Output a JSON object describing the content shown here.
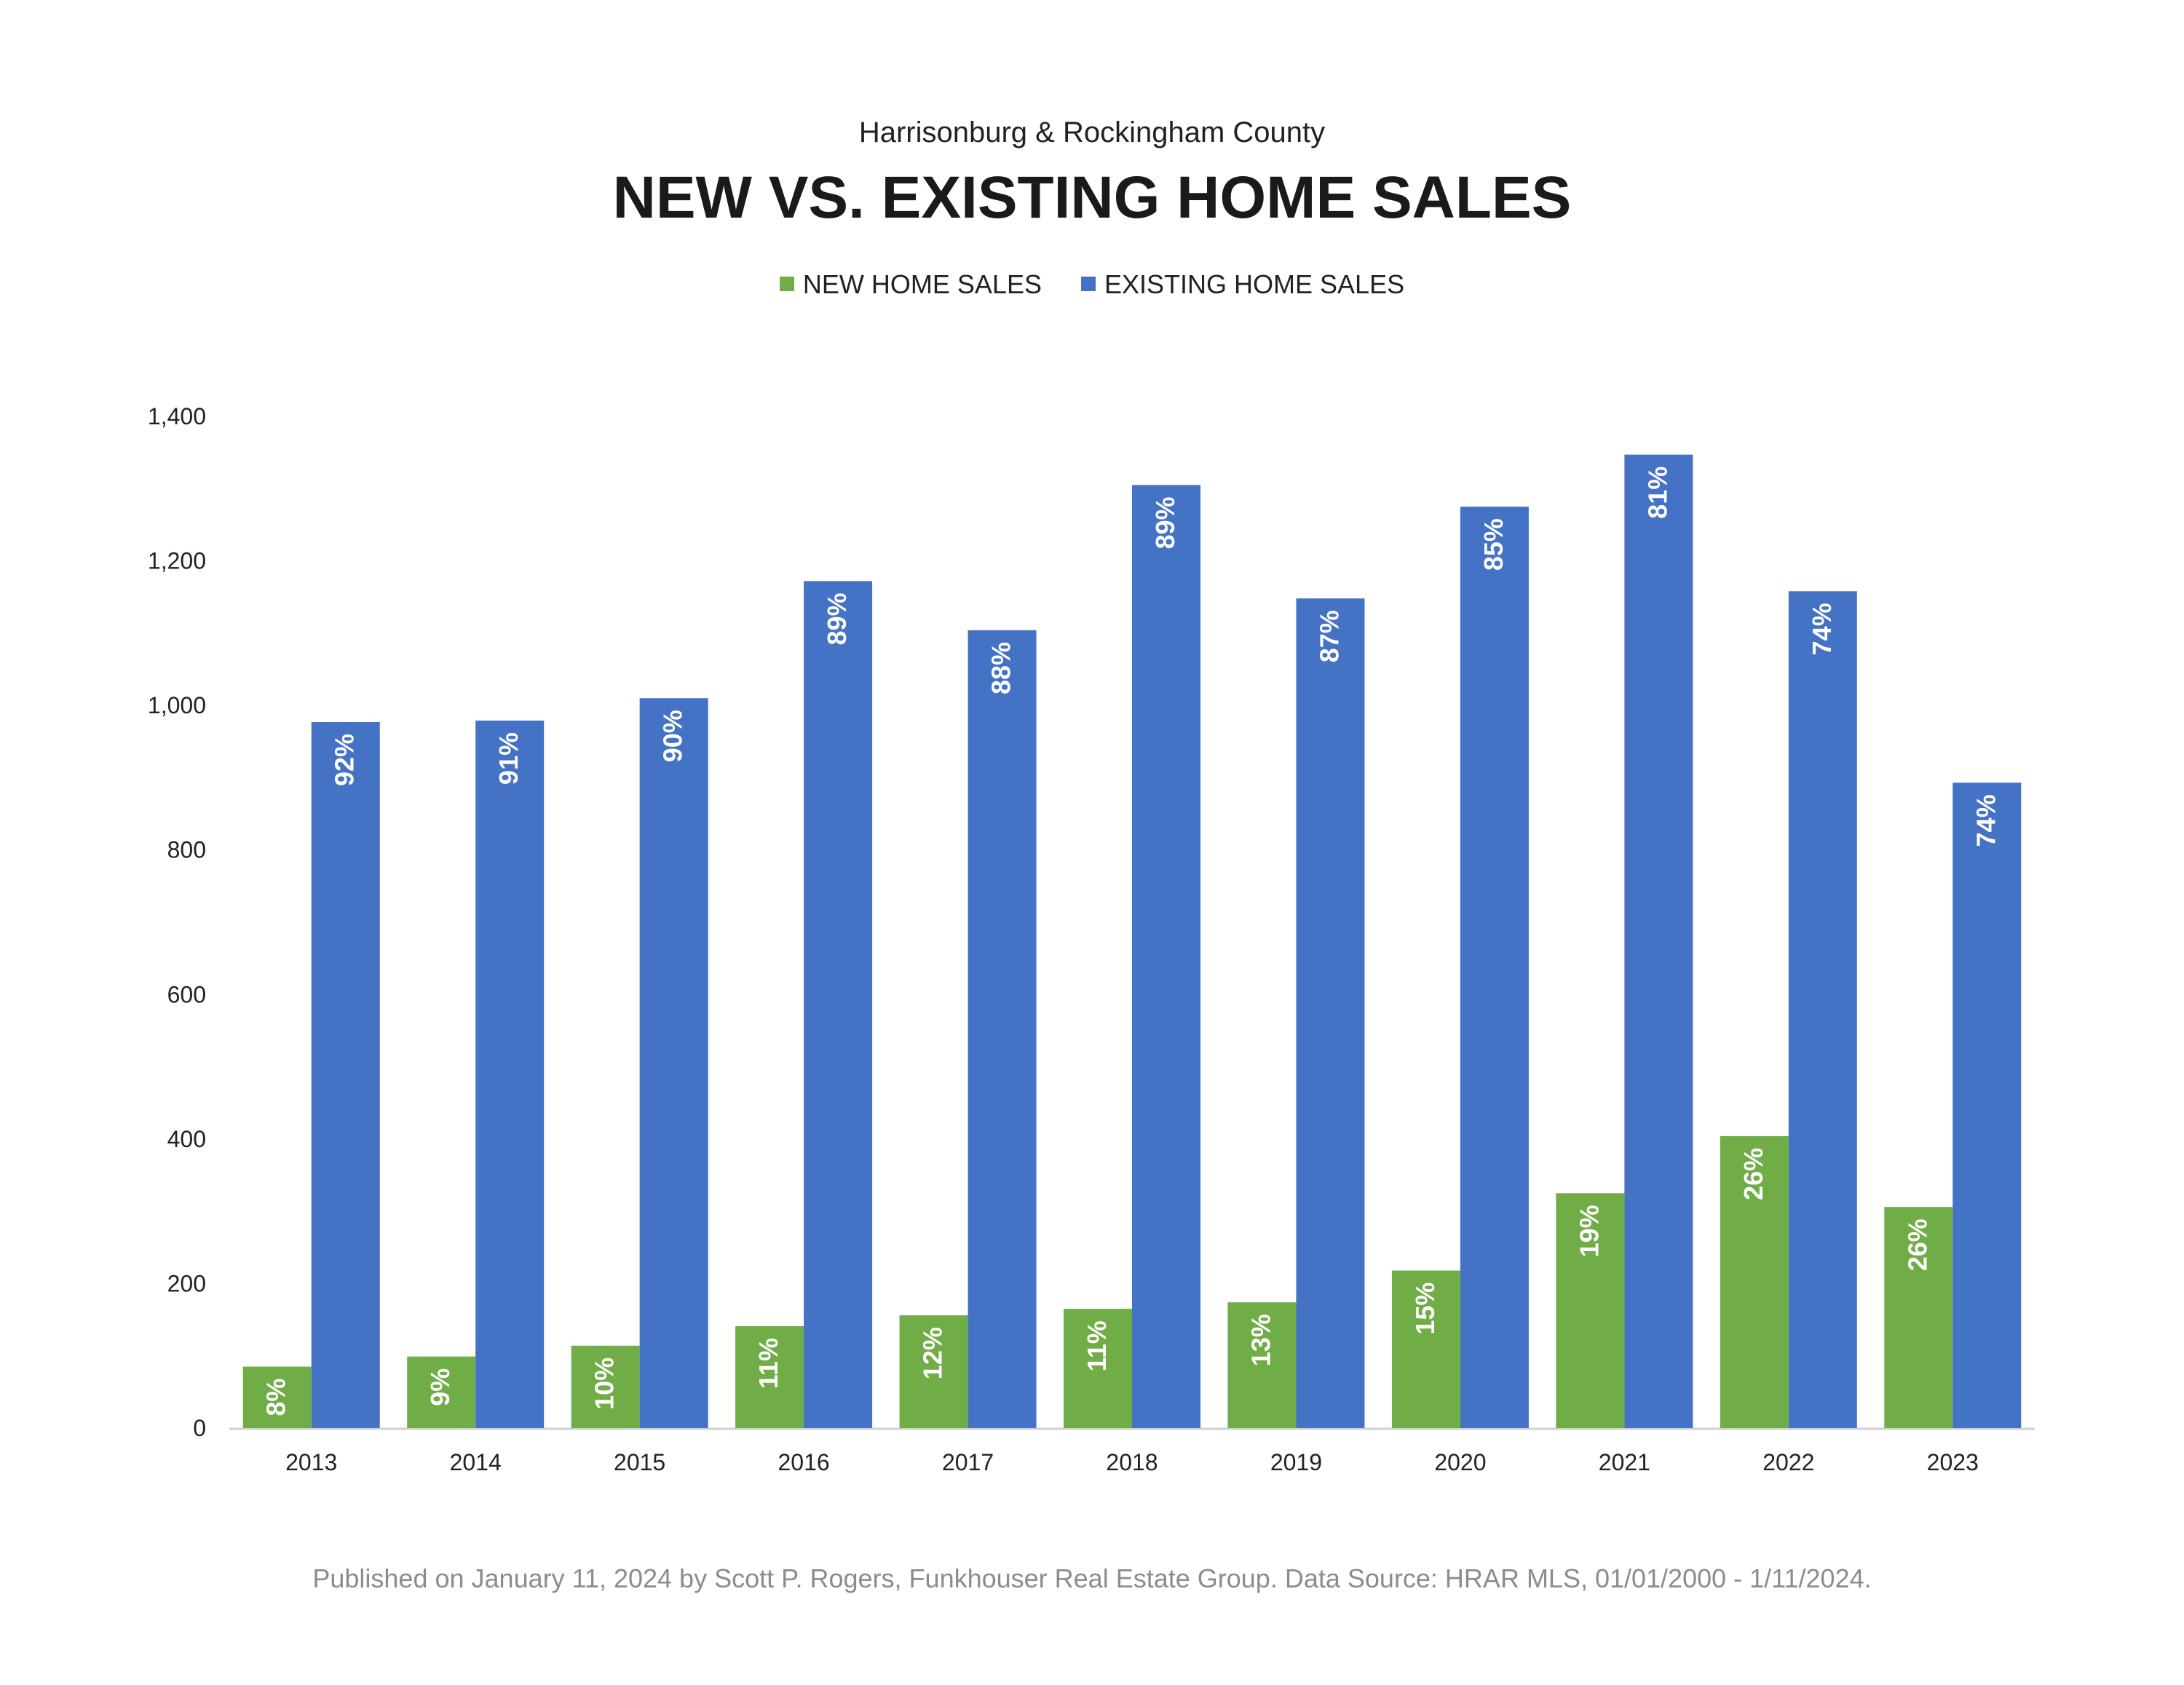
{
  "header": {
    "subtitle": "Harrisonburg & Rockingham County",
    "title": "NEW VS. EXISTING HOME SALES"
  },
  "footer": {
    "text": "Published on January 11, 2024 by Scott P. Rogers, Funkhouser Real Estate Group. Data Source: HRAR MLS, 01/01/2000 - 1/11/2024."
  },
  "colors": {
    "new": "#70ad47",
    "existing": "#4472c4"
  },
  "chart_data": {
    "type": "bar",
    "title": "NEW VS. EXISTING HOME SALES",
    "subtitle": "Harrisonburg & Rockingham County",
    "xlabel": "",
    "ylabel": "",
    "ylim": [
      0,
      1400
    ],
    "y_ticks": [
      0,
      200,
      400,
      600,
      800,
      1000,
      1200,
      1400
    ],
    "y_tick_labels": [
      "0",
      "200",
      "400",
      "600",
      "800",
      "1,000",
      "1,200",
      "1,400"
    ],
    "grid": false,
    "legend_position": "top-center",
    "categories": [
      "2013",
      "2014",
      "2015",
      "2016",
      "2017",
      "2018",
      "2019",
      "2020",
      "2021",
      "2022",
      "2023"
    ],
    "series": [
      {
        "name": "NEW HOME SALES",
        "color": "#70ad47",
        "values": [
          85,
          99,
          114,
          141,
          156,
          165,
          174,
          218,
          325,
          404,
          306
        ],
        "labels": [
          "8%",
          "9%",
          "10%",
          "11%",
          "12%",
          "11%",
          "13%",
          "15%",
          "19%",
          "26%",
          "26%"
        ]
      },
      {
        "name": "EXISTING HOME SALES",
        "color": "#4472c4",
        "values": [
          977,
          979,
          1010,
          1172,
          1104,
          1305,
          1148,
          1275,
          1347,
          1158,
          893
        ],
        "labels": [
          "92%",
          "91%",
          "90%",
          "89%",
          "88%",
          "89%",
          "87%",
          "85%",
          "81%",
          "74%",
          "74%"
        ]
      }
    ]
  }
}
